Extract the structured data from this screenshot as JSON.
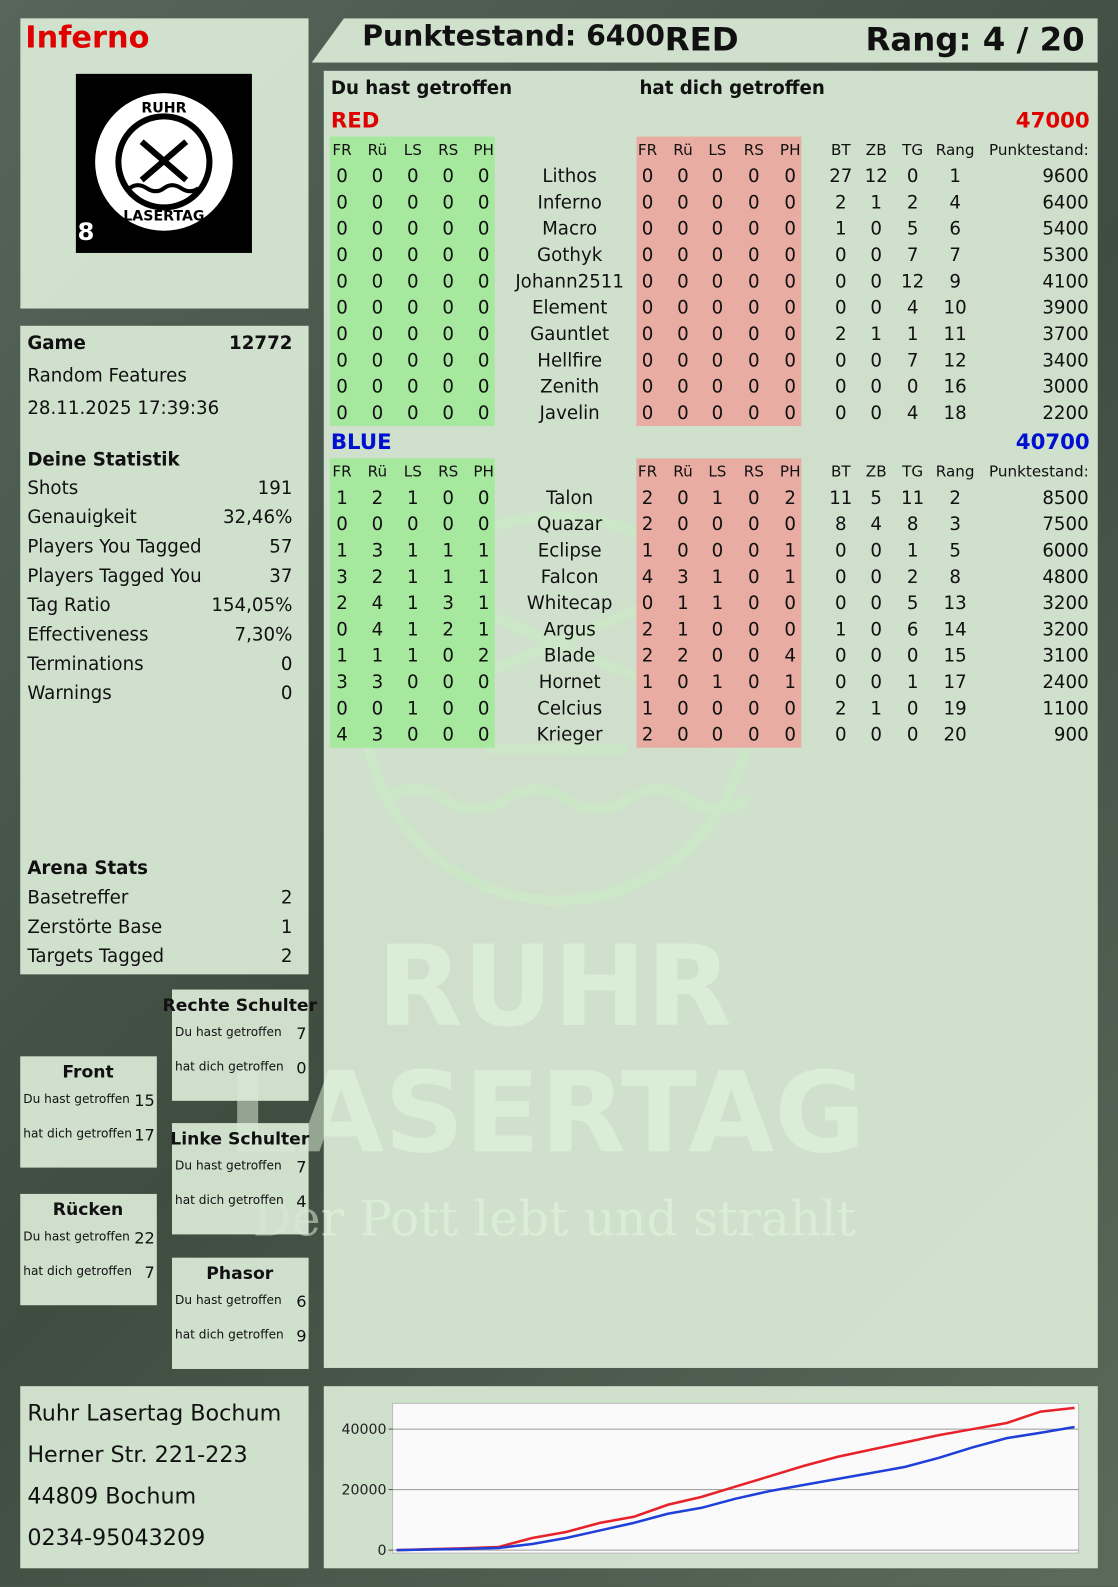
{
  "header": {
    "player": "Inferno",
    "score": "Punktestand: 6400",
    "team": "RED",
    "rank": "Rang: 4 / 20"
  },
  "logo": {
    "top": "RUHR",
    "bottom": "LASERTAG",
    "badge": "8"
  },
  "game": {
    "label": "Game",
    "id": "12772",
    "mode": "Random Features",
    "date": "28.11.2025 17:39:36"
  },
  "stats": {
    "title": "Deine Statistik",
    "rows": [
      [
        "Shots",
        "191"
      ],
      [
        "Genauigkeit",
        "32,46%"
      ],
      [
        "Players You Tagged",
        "57"
      ],
      [
        "Players Tagged You",
        "37"
      ],
      [
        "Tag Ratio",
        "154,05%"
      ],
      [
        "Effectiveness",
        "7,30%"
      ],
      [
        "Terminations",
        "0"
      ],
      [
        "Warnings",
        "0"
      ]
    ]
  },
  "arena": {
    "title": "Arena Stats",
    "rows": [
      [
        "Basetreffer",
        "2"
      ],
      [
        "Zerstörte Base",
        "1"
      ],
      [
        "Targets Tagged",
        "2"
      ]
    ]
  },
  "zones": [
    {
      "title": "Rechte Schulter",
      "rows": [
        [
          "Du hast getroffen",
          "7"
        ],
        [
          "hat dich getroffen",
          "0"
        ]
      ]
    },
    {
      "title": "Front",
      "rows": [
        [
          "Du hast getroffen",
          "15"
        ],
        [
          "hat dich getroffen",
          "17"
        ]
      ]
    },
    {
      "title": "Linke Schulter",
      "rows": [
        [
          "Du hast getroffen",
          "7"
        ],
        [
          "hat dich getroffen",
          "4"
        ]
      ]
    },
    {
      "title": "Rücken",
      "rows": [
        [
          "Du hast getroffen",
          "22"
        ],
        [
          "hat dich getroffen",
          "7"
        ]
      ]
    },
    {
      "title": "Phasor",
      "rows": [
        [
          "Du hast getroffen",
          "6"
        ],
        [
          "hat dich getroffen",
          "9"
        ]
      ]
    }
  ],
  "address": [
    "Ruhr Lasertag Bochum",
    "Herner Str. 221-223",
    "44809 Bochum",
    "0234-95043209"
  ],
  "watermark": [
    "RUHR",
    "LASERTAG",
    "Der Pott lebt und strahlt"
  ],
  "scoreboard": {
    "you_hit": "Du hast getroffen",
    "hit_you": "hat dich getroffen",
    "columns": [
      "FR",
      "Rü",
      "LS",
      "RS",
      "PH",
      "FR",
      "Rü",
      "LS",
      "RS",
      "PH",
      "BT",
      "ZB",
      "TG",
      "Rang",
      "Punktestand:"
    ],
    "teams": [
      {
        "name": "RED",
        "color": "#e00000",
        "total": "47000",
        "players": [
          [
            0,
            0,
            0,
            0,
            0,
            "Lithos",
            0,
            0,
            0,
            0,
            0,
            27,
            12,
            0,
            1,
            9600
          ],
          [
            0,
            0,
            0,
            0,
            0,
            "Inferno",
            0,
            0,
            0,
            0,
            0,
            2,
            1,
            2,
            4,
            6400
          ],
          [
            0,
            0,
            0,
            0,
            0,
            "Macro",
            0,
            0,
            0,
            0,
            0,
            1,
            0,
            5,
            6,
            5400
          ],
          [
            0,
            0,
            0,
            0,
            0,
            "Gothyk",
            0,
            0,
            0,
            0,
            0,
            0,
            0,
            7,
            7,
            5300
          ],
          [
            0,
            0,
            0,
            0,
            0,
            "Johann2511",
            0,
            0,
            0,
            0,
            0,
            0,
            0,
            12,
            9,
            4100
          ],
          [
            0,
            0,
            0,
            0,
            0,
            "Element",
            0,
            0,
            0,
            0,
            0,
            0,
            0,
            4,
            10,
            3900
          ],
          [
            0,
            0,
            0,
            0,
            0,
            "Gauntlet",
            0,
            0,
            0,
            0,
            0,
            2,
            1,
            1,
            11,
            3700
          ],
          [
            0,
            0,
            0,
            0,
            0,
            "Hellfire",
            0,
            0,
            0,
            0,
            0,
            0,
            0,
            7,
            12,
            3400
          ],
          [
            0,
            0,
            0,
            0,
            0,
            "Zenith",
            0,
            0,
            0,
            0,
            0,
            0,
            0,
            0,
            16,
            3000
          ],
          [
            0,
            0,
            0,
            0,
            0,
            "Javelin",
            0,
            0,
            0,
            0,
            0,
            0,
            0,
            4,
            18,
            2200
          ]
        ]
      },
      {
        "name": "BLUE",
        "color": "#0010d0",
        "total": "40700",
        "players": [
          [
            1,
            2,
            1,
            0,
            0,
            "Talon",
            2,
            0,
            1,
            0,
            2,
            11,
            5,
            11,
            2,
            8500
          ],
          [
            0,
            0,
            0,
            0,
            0,
            "Quazar",
            2,
            0,
            0,
            0,
            0,
            8,
            4,
            8,
            3,
            7500
          ],
          [
            1,
            3,
            1,
            1,
            1,
            "Eclipse",
            1,
            0,
            0,
            0,
            1,
            0,
            0,
            1,
            5,
            6000
          ],
          [
            3,
            2,
            1,
            1,
            1,
            "Falcon",
            4,
            3,
            1,
            0,
            1,
            0,
            0,
            2,
            8,
            4800
          ],
          [
            2,
            4,
            1,
            3,
            1,
            "Whitecap",
            0,
            1,
            1,
            0,
            0,
            0,
            0,
            5,
            13,
            3200
          ],
          [
            0,
            4,
            1,
            2,
            1,
            "Argus",
            2,
            1,
            0,
            0,
            0,
            1,
            0,
            6,
            14,
            3200
          ],
          [
            1,
            1,
            1,
            0,
            2,
            "Blade",
            2,
            2,
            0,
            0,
            4,
            0,
            0,
            0,
            15,
            3100
          ],
          [
            3,
            3,
            0,
            0,
            0,
            "Hornet",
            1,
            0,
            1,
            0,
            1,
            0,
            0,
            1,
            17,
            2400
          ],
          [
            0,
            0,
            1,
            0,
            0,
            "Celcius",
            1,
            0,
            0,
            0,
            0,
            2,
            1,
            0,
            19,
            1100
          ],
          [
            4,
            3,
            0,
            0,
            0,
            "Krieger",
            2,
            0,
            0,
            0,
            0,
            0,
            0,
            0,
            20,
            900
          ]
        ]
      }
    ]
  },
  "chart_data": {
    "type": "line",
    "ylim": [
      -1000,
      48500
    ],
    "yticks": [
      0,
      20000,
      40000
    ],
    "grid": true,
    "series": [
      {
        "name": "RED",
        "color": "#e8222a",
        "values": [
          0,
          300,
          600,
          1000,
          4000,
          6000,
          9000,
          11000,
          15000,
          17600,
          21000,
          24400,
          27800,
          30800,
          33200,
          35600,
          38000,
          40000,
          42000,
          45800,
          47000
        ]
      },
      {
        "name": "BLUE",
        "color": "#1f3fd8",
        "values": [
          0,
          200,
          400,
          700,
          2000,
          4000,
          6500,
          9000,
          12000,
          14000,
          17000,
          19500,
          21500,
          23500,
          25500,
          27500,
          30500,
          34000,
          37000,
          38800,
          40700
        ]
      }
    ]
  }
}
